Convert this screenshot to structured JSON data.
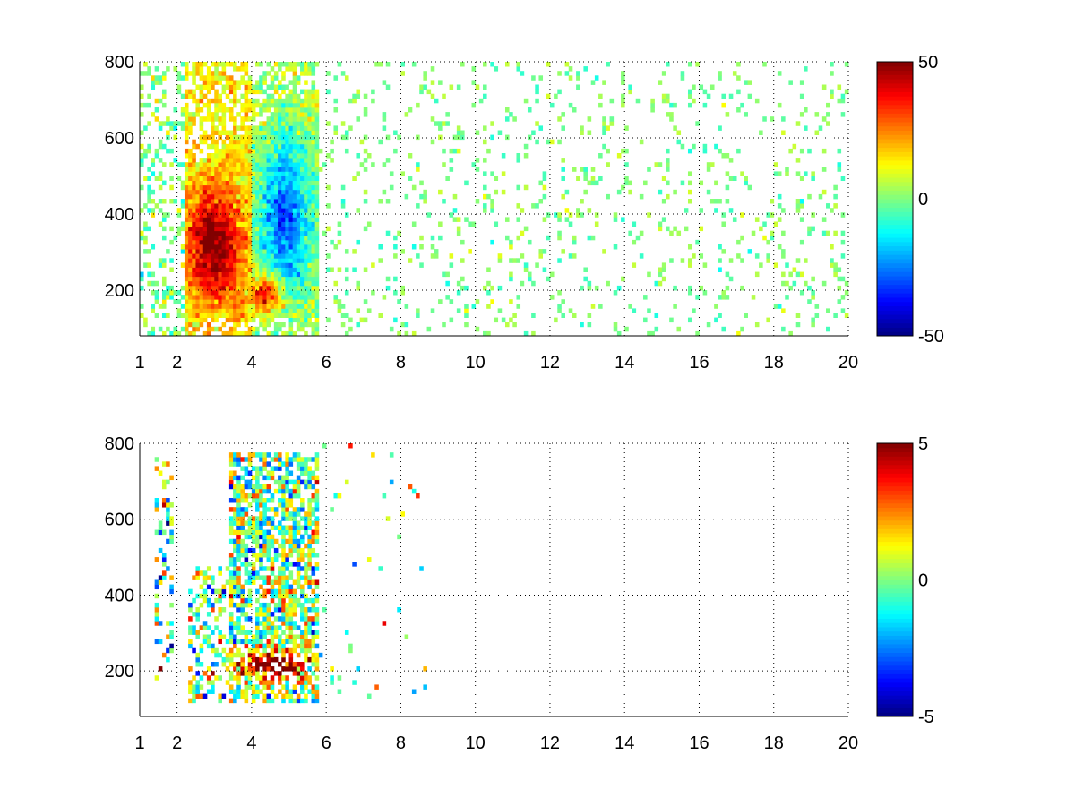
{
  "colormap": "jet",
  "chart_data": [
    {
      "type": "heatmap",
      "name": "top",
      "title": "",
      "xlabel": "",
      "ylabel": "",
      "xlim": [
        1,
        20
      ],
      "ylim": [
        80,
        800
      ],
      "xticks": [
        1,
        2,
        4,
        6,
        8,
        10,
        12,
        14,
        16,
        18,
        20
      ],
      "yticks": [
        200,
        400,
        600,
        800
      ],
      "grid": true,
      "colorbar": {
        "clim": [
          -50,
          50
        ],
        "ticks": [
          50,
          0,
          -50
        ],
        "orientation": "vertical",
        "placement": "right"
      },
      "regions": [
        {
          "description": "positive band (orange/red)",
          "x": [
            2.2,
            4.0
          ],
          "y": [
            150,
            500
          ],
          "value": 30
        },
        {
          "description": "positive core (red)",
          "x": [
            2.6,
            3.6
          ],
          "y": [
            250,
            400
          ],
          "value": 42
        },
        {
          "description": "negative band (blue)",
          "x": [
            4.0,
            5.8
          ],
          "y": [
            180,
            650
          ],
          "value": -30
        },
        {
          "description": "positive patch (orange)",
          "x": [
            4.0,
            5.0
          ],
          "y": [
            150,
            250
          ],
          "value": 28
        },
        {
          "description": "sparse scatter near zero",
          "x": [
            5.8,
            20
          ],
          "y": [
            80,
            800
          ],
          "value": 0
        }
      ]
    },
    {
      "type": "heatmap",
      "name": "bottom",
      "title": "",
      "xlabel": "",
      "ylabel": "",
      "xlim": [
        1,
        20
      ],
      "ylim": [
        80,
        800
      ],
      "xticks": [
        1,
        2,
        4,
        6,
        8,
        10,
        12,
        14,
        16,
        18,
        20
      ],
      "yticks": [
        200,
        400,
        600,
        800
      ],
      "grid": true,
      "colorbar": {
        "clim": [
          -5,
          5
        ],
        "ticks": [
          5,
          0,
          -5
        ],
        "orientation": "vertical",
        "placement": "right"
      },
      "regions": [
        {
          "description": "dense mixed values",
          "x": [
            2.3,
            5.8
          ],
          "y": [
            120,
            800
          ],
          "value": 0
        },
        {
          "description": "positive band (red)",
          "x": [
            3.6,
            5.6
          ],
          "y": [
            160,
            260
          ],
          "value": 4
        },
        {
          "description": "isolated points",
          "x": [
            6.0,
            8.6
          ],
          "y": [
            180,
            760
          ],
          "value": 1
        }
      ]
    }
  ]
}
